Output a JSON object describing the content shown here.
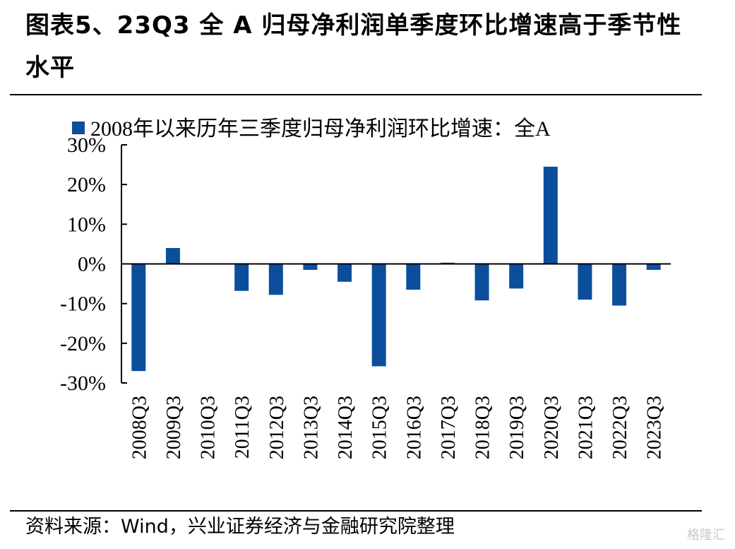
{
  "figure": {
    "title": "图表5、23Q3 全 A 归母净利润单季度环比增速高于季节性水平",
    "source": "资料来源：Wind，兴业证券经济与金融研究院整理",
    "watermark": "格隆汇"
  },
  "colors": {
    "bar": "#0b4f9c",
    "axis": "#000000"
  },
  "chart_data": {
    "type": "bar",
    "legend": "2008年以来历年三季度归母净利润环比增速：全A",
    "legend_position": "top-left",
    "grid": false,
    "categories": [
      "2008Q3",
      "2009Q3",
      "2010Q3",
      "2011Q3",
      "2012Q3",
      "2013Q3",
      "2014Q3",
      "2015Q3",
      "2016Q3",
      "2017Q3",
      "2018Q3",
      "2019Q3",
      "2020Q3",
      "2021Q3",
      "2022Q3",
      "2023Q3"
    ],
    "series": [
      {
        "name": "2008年以来历年三季度归母净利润环比增速：全A",
        "values": [
          -27.0,
          4.0,
          0.0,
          -6.8,
          -7.8,
          -1.5,
          -4.5,
          -25.8,
          -6.5,
          0.3,
          -9.2,
          -6.2,
          24.5,
          -9.0,
          -10.5,
          -1.5
        ]
      }
    ],
    "ylim": [
      -30,
      30
    ],
    "yticks": [
      30,
      20,
      10,
      0,
      -10,
      -20,
      -30
    ],
    "ytick_labels": [
      "30%",
      "20%",
      "10%",
      "0%",
      "-10%",
      "-20%",
      "-30%"
    ],
    "xlabel": "",
    "ylabel": ""
  }
}
